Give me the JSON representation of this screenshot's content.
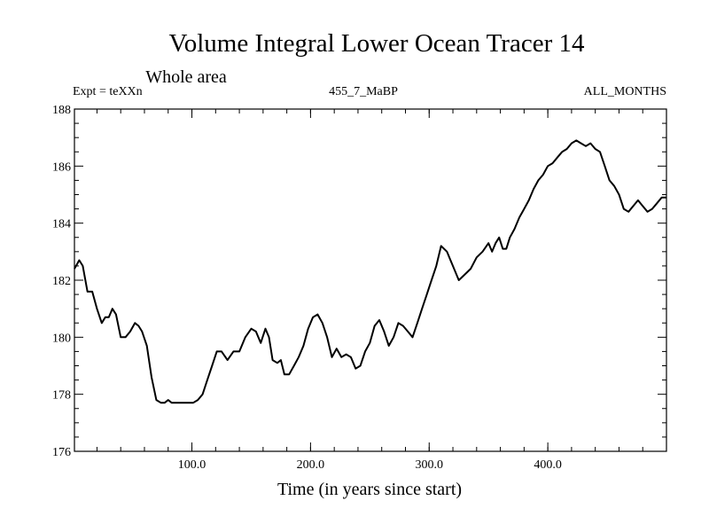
{
  "chart_data": {
    "type": "line",
    "title": "Volume Integral Lower Ocean Tracer 14",
    "subtitle": "Whole area",
    "expt_label": "Expt = teXXn",
    "center_label": "455_7_MaBP",
    "right_label": "ALL_MONTHS",
    "xlabel": "Time (in years since start)",
    "ylabel": "",
    "xlim": [
      1,
      500
    ],
    "ylim": [
      176,
      188
    ],
    "x_ticks": [
      {
        "value": 100,
        "label": "100.0"
      },
      {
        "value": 200,
        "label": "200.0"
      },
      {
        "value": 300,
        "label": "300.0"
      },
      {
        "value": 400,
        "label": "400.0"
      }
    ],
    "y_ticks": [
      {
        "value": 176,
        "label": "176"
      },
      {
        "value": 178,
        "label": "178"
      },
      {
        "value": 180,
        "label": "180"
      },
      {
        "value": 182,
        "label": "182"
      },
      {
        "value": 184,
        "label": "184"
      },
      {
        "value": 186,
        "label": "186"
      },
      {
        "value": 188,
        "label": "188"
      }
    ],
    "grid": false,
    "series": [
      {
        "name": "Volume Integral Lower Ocean Tracer 14",
        "x": [
          1,
          5,
          8,
          12,
          16,
          20,
          24,
          27,
          30,
          33,
          36,
          40,
          44,
          48,
          52,
          55,
          58,
          62,
          66,
          70,
          74,
          77,
          80,
          83,
          86,
          89,
          92,
          95,
          98,
          101,
          105,
          109,
          113,
          117,
          121,
          125,
          130,
          135,
          140,
          145,
          150,
          154,
          158,
          162,
          165,
          168,
          172,
          175,
          178,
          182,
          186,
          190,
          194,
          198,
          202,
          206,
          210,
          214,
          218,
          222,
          226,
          230,
          234,
          238,
          242,
          246,
          250,
          254,
          258,
          262,
          266,
          270,
          274,
          278,
          282,
          286,
          290,
          294,
          298,
          302,
          306,
          310,
          315,
          320,
          325,
          330,
          335,
          340,
          345,
          350,
          353,
          356,
          359,
          362,
          365,
          368,
          372,
          376,
          380,
          384,
          388,
          392,
          396,
          400,
          404,
          408,
          412,
          416,
          420,
          424,
          428,
          432,
          436,
          440,
          444,
          448,
          452,
          456,
          460,
          464,
          468,
          472,
          476,
          480,
          484,
          488,
          492,
          496,
          500
        ],
        "y": [
          182.4,
          182.7,
          182.5,
          181.6,
          181.6,
          181.0,
          180.5,
          180.7,
          180.7,
          181.0,
          180.8,
          180.0,
          180.0,
          180.2,
          180.5,
          180.4,
          180.2,
          179.7,
          178.6,
          177.8,
          177.7,
          177.7,
          177.8,
          177.7,
          177.7,
          177.7,
          177.7,
          177.7,
          177.7,
          177.7,
          177.8,
          178.0,
          178.5,
          179.0,
          179.5,
          179.5,
          179.2,
          179.5,
          179.5,
          180.0,
          180.3,
          180.2,
          179.8,
          180.3,
          180.0,
          179.2,
          179.1,
          179.2,
          178.7,
          178.7,
          179.0,
          179.3,
          179.7,
          180.3,
          180.7,
          180.8,
          180.5,
          180.0,
          179.3,
          179.6,
          179.3,
          179.4,
          179.3,
          178.9,
          179.0,
          179.5,
          179.8,
          180.4,
          180.6,
          180.2,
          179.7,
          180.0,
          180.5,
          180.4,
          180.2,
          180.0,
          180.5,
          181.0,
          181.5,
          182.0,
          182.5,
          183.2,
          183.0,
          182.5,
          182.0,
          182.2,
          182.4,
          182.8,
          183.0,
          183.3,
          183.0,
          183.3,
          183.5,
          183.1,
          183.1,
          183.5,
          183.8,
          184.2,
          184.5,
          184.8,
          185.2,
          185.5,
          185.7,
          186.0,
          186.1,
          186.3,
          186.5,
          186.6,
          186.8,
          186.9,
          186.8,
          186.7,
          186.8,
          186.6,
          186.5,
          186.0,
          185.5,
          185.3,
          185.0,
          184.5,
          184.4,
          184.6,
          184.8,
          184.6,
          184.4,
          184.5,
          184.7,
          184.9,
          184.9
        ]
      }
    ]
  }
}
